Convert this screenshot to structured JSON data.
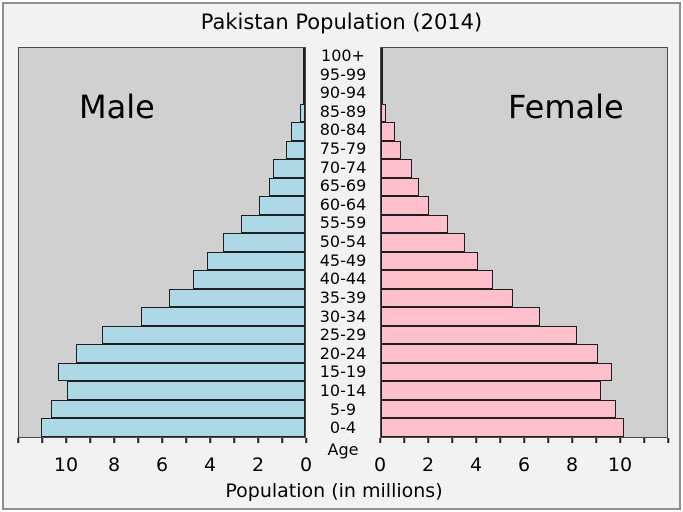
{
  "title": "Pakistan Population (2014)",
  "labels": {
    "male": "Male",
    "female": "Female",
    "age": "Age",
    "xaxis": "Population (in millions)"
  },
  "colors": {
    "male_bar": "#ADD8E6",
    "female_bar": "#FFC0CB",
    "panel_bg": "#d0d0d0",
    "figure_bg": "#f2f2f2"
  },
  "chart_data": {
    "type": "bar",
    "subtype": "population-pyramid",
    "title": "Pakistan Population (2014)",
    "xlabel": "Population (in millions)",
    "center_axis_label": "Age",
    "units": "millions",
    "age_groups_top_to_bottom": [
      "100+",
      "95-99",
      "90-94",
      "85-89",
      "80-84",
      "75-79",
      "70-74",
      "65-69",
      "60-64",
      "55-59",
      "50-54",
      "45-49",
      "40-44",
      "35-39",
      "30-34",
      "25-29",
      "20-24",
      "15-19",
      "10-14",
      "5-9",
      "0-4"
    ],
    "series": [
      {
        "name": "Male",
        "side": "left",
        "color": "#ADD8E6",
        "values": [
          0.01,
          0.03,
          0.07,
          0.22,
          0.57,
          0.8,
          1.33,
          1.5,
          1.95,
          2.7,
          3.46,
          4.11,
          4.7,
          5.71,
          6.89,
          8.52,
          9.59,
          10.37,
          10.0,
          10.65,
          11.07
        ]
      },
      {
        "name": "Female",
        "side": "right",
        "color": "#FFC0CB",
        "values": [
          0.01,
          0.02,
          0.07,
          0.21,
          0.59,
          0.85,
          1.28,
          1.58,
          2.01,
          2.83,
          3.53,
          4.05,
          4.68,
          5.52,
          6.68,
          8.22,
          9.11,
          9.68,
          9.22,
          9.86,
          10.21
        ]
      }
    ],
    "x_axis": {
      "max": 12,
      "tick_interval": 1,
      "labeled_ticks": [
        0,
        2,
        4,
        6,
        8,
        10
      ],
      "mirrored": true,
      "grid": false
    }
  }
}
